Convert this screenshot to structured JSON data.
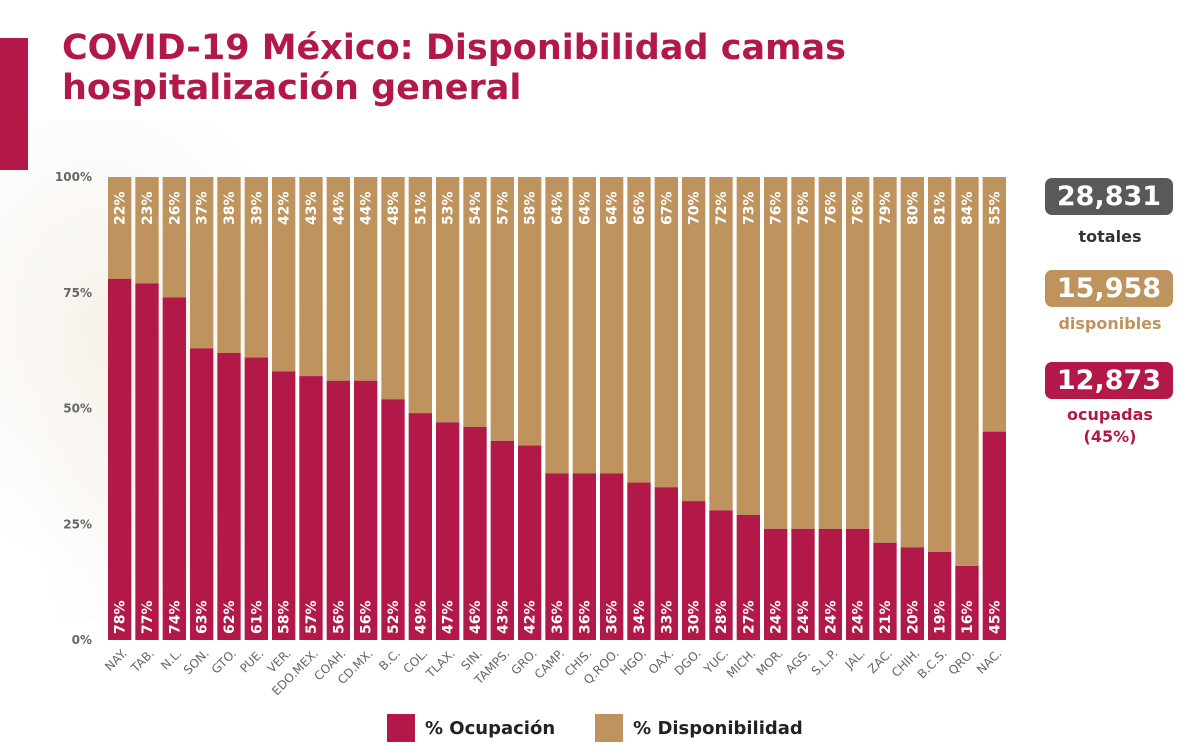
{
  "title": "COVID-19 México: Disponibilidad camas hospitalización general",
  "colors": {
    "ocupacion": "#B21848",
    "disponibilidad": "#BE935E",
    "totales": "#595959"
  },
  "stats": {
    "totales": {
      "value": "28,831",
      "label": "totales"
    },
    "disponibles": {
      "value": "15,958",
      "label": "disponibles"
    },
    "ocupadas": {
      "value": "12,873",
      "label": "ocupadas",
      "pct": "(45%)"
    }
  },
  "legend": {
    "ocupacion": "% Ocupación",
    "disponibilidad": "% Disponibilidad"
  },
  "chart_data": {
    "type": "bar",
    "stacked": true,
    "categories": [
      "NAY.",
      "TAB.",
      "N.L.",
      "SON.",
      "GTO.",
      "PUE.",
      "VER.",
      "EDO.MEX.",
      "COAH.",
      "CD.MX.",
      "B.C.",
      "COL.",
      "TLAX.",
      "SIN.",
      "TAMPS.",
      "GRO.",
      "CAMP.",
      "CHIS.",
      "Q.ROO.",
      "HGO.",
      "OAX.",
      "DGO.",
      "YUC.",
      "MICH.",
      "MOR.",
      "AGS.",
      "S.L.P.",
      "JAL.",
      "ZAC.",
      "CHIH.",
      "B.C.S.",
      "QRO.",
      "NAC."
    ],
    "series": [
      {
        "name": "% Ocupación",
        "values": [
          78,
          77,
          74,
          63,
          62,
          61,
          58,
          57,
          56,
          56,
          52,
          49,
          47,
          46,
          43,
          42,
          36,
          36,
          36,
          34,
          33,
          30,
          28,
          27,
          24,
          24,
          24,
          24,
          21,
          20,
          19,
          16,
          45
        ]
      },
      {
        "name": "% Disponibilidad",
        "values": [
          22,
          23,
          26,
          37,
          38,
          39,
          42,
          43,
          44,
          44,
          48,
          51,
          53,
          54,
          57,
          58,
          64,
          64,
          64,
          66,
          67,
          70,
          72,
          73,
          76,
          76,
          76,
          76,
          79,
          80,
          81,
          84,
          55
        ]
      }
    ],
    "yticks": [
      "0%",
      "25%",
      "50%",
      "75%",
      "100%"
    ],
    "ylim": [
      0,
      100
    ],
    "legend_position": "bottom"
  }
}
